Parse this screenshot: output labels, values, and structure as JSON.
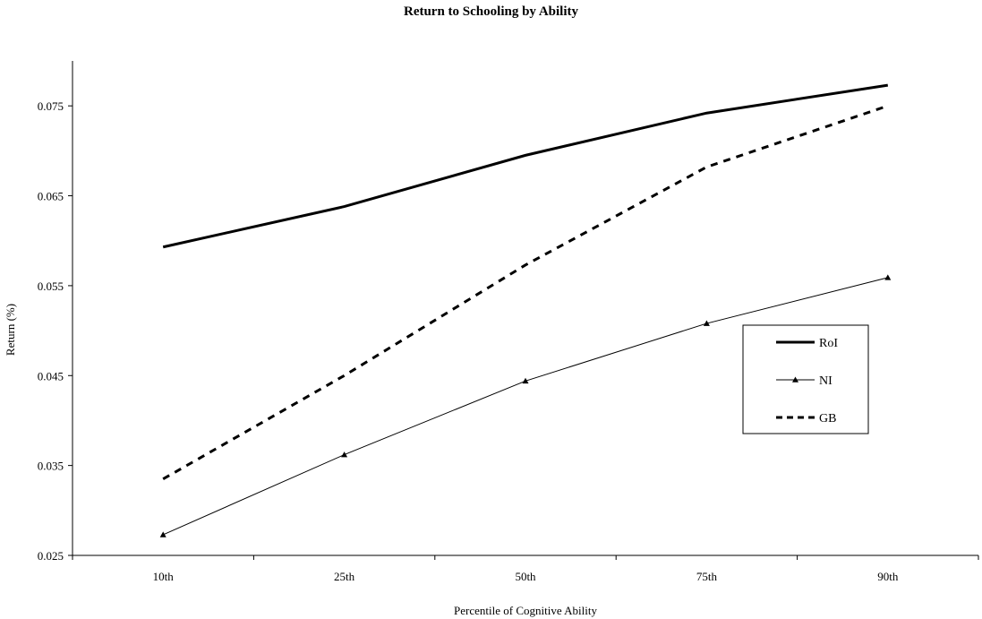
{
  "chart_data": {
    "type": "line",
    "title": "Return to Schooling by Ability",
    "xlabel": "Percentile of Cognitive Ability",
    "ylabel": "Return (%)",
    "categories": [
      "10th",
      "25th",
      "50th",
      "75th",
      "90th"
    ],
    "ylim": [
      0.025,
      0.08
    ],
    "yticks": [
      "0.025",
      "0.035",
      "0.045",
      "0.055",
      "0.065",
      "0.075"
    ],
    "grid": false,
    "legend_position": "right",
    "series": [
      {
        "name": "RoI",
        "values": [
          0.0593,
          0.0638,
          0.0695,
          0.0742,
          0.0773
        ],
        "style": "solid-thick",
        "color": "#000000"
      },
      {
        "name": "NI",
        "values": [
          0.0273,
          0.0362,
          0.0444,
          0.0508,
          0.0559
        ],
        "style": "solid-thin-triangle",
        "color": "#000000"
      },
      {
        "name": "GB",
        "values": [
          0.0335,
          0.045,
          0.0573,
          0.0682,
          0.075
        ],
        "style": "dashed-thick",
        "color": "#000000"
      }
    ]
  }
}
